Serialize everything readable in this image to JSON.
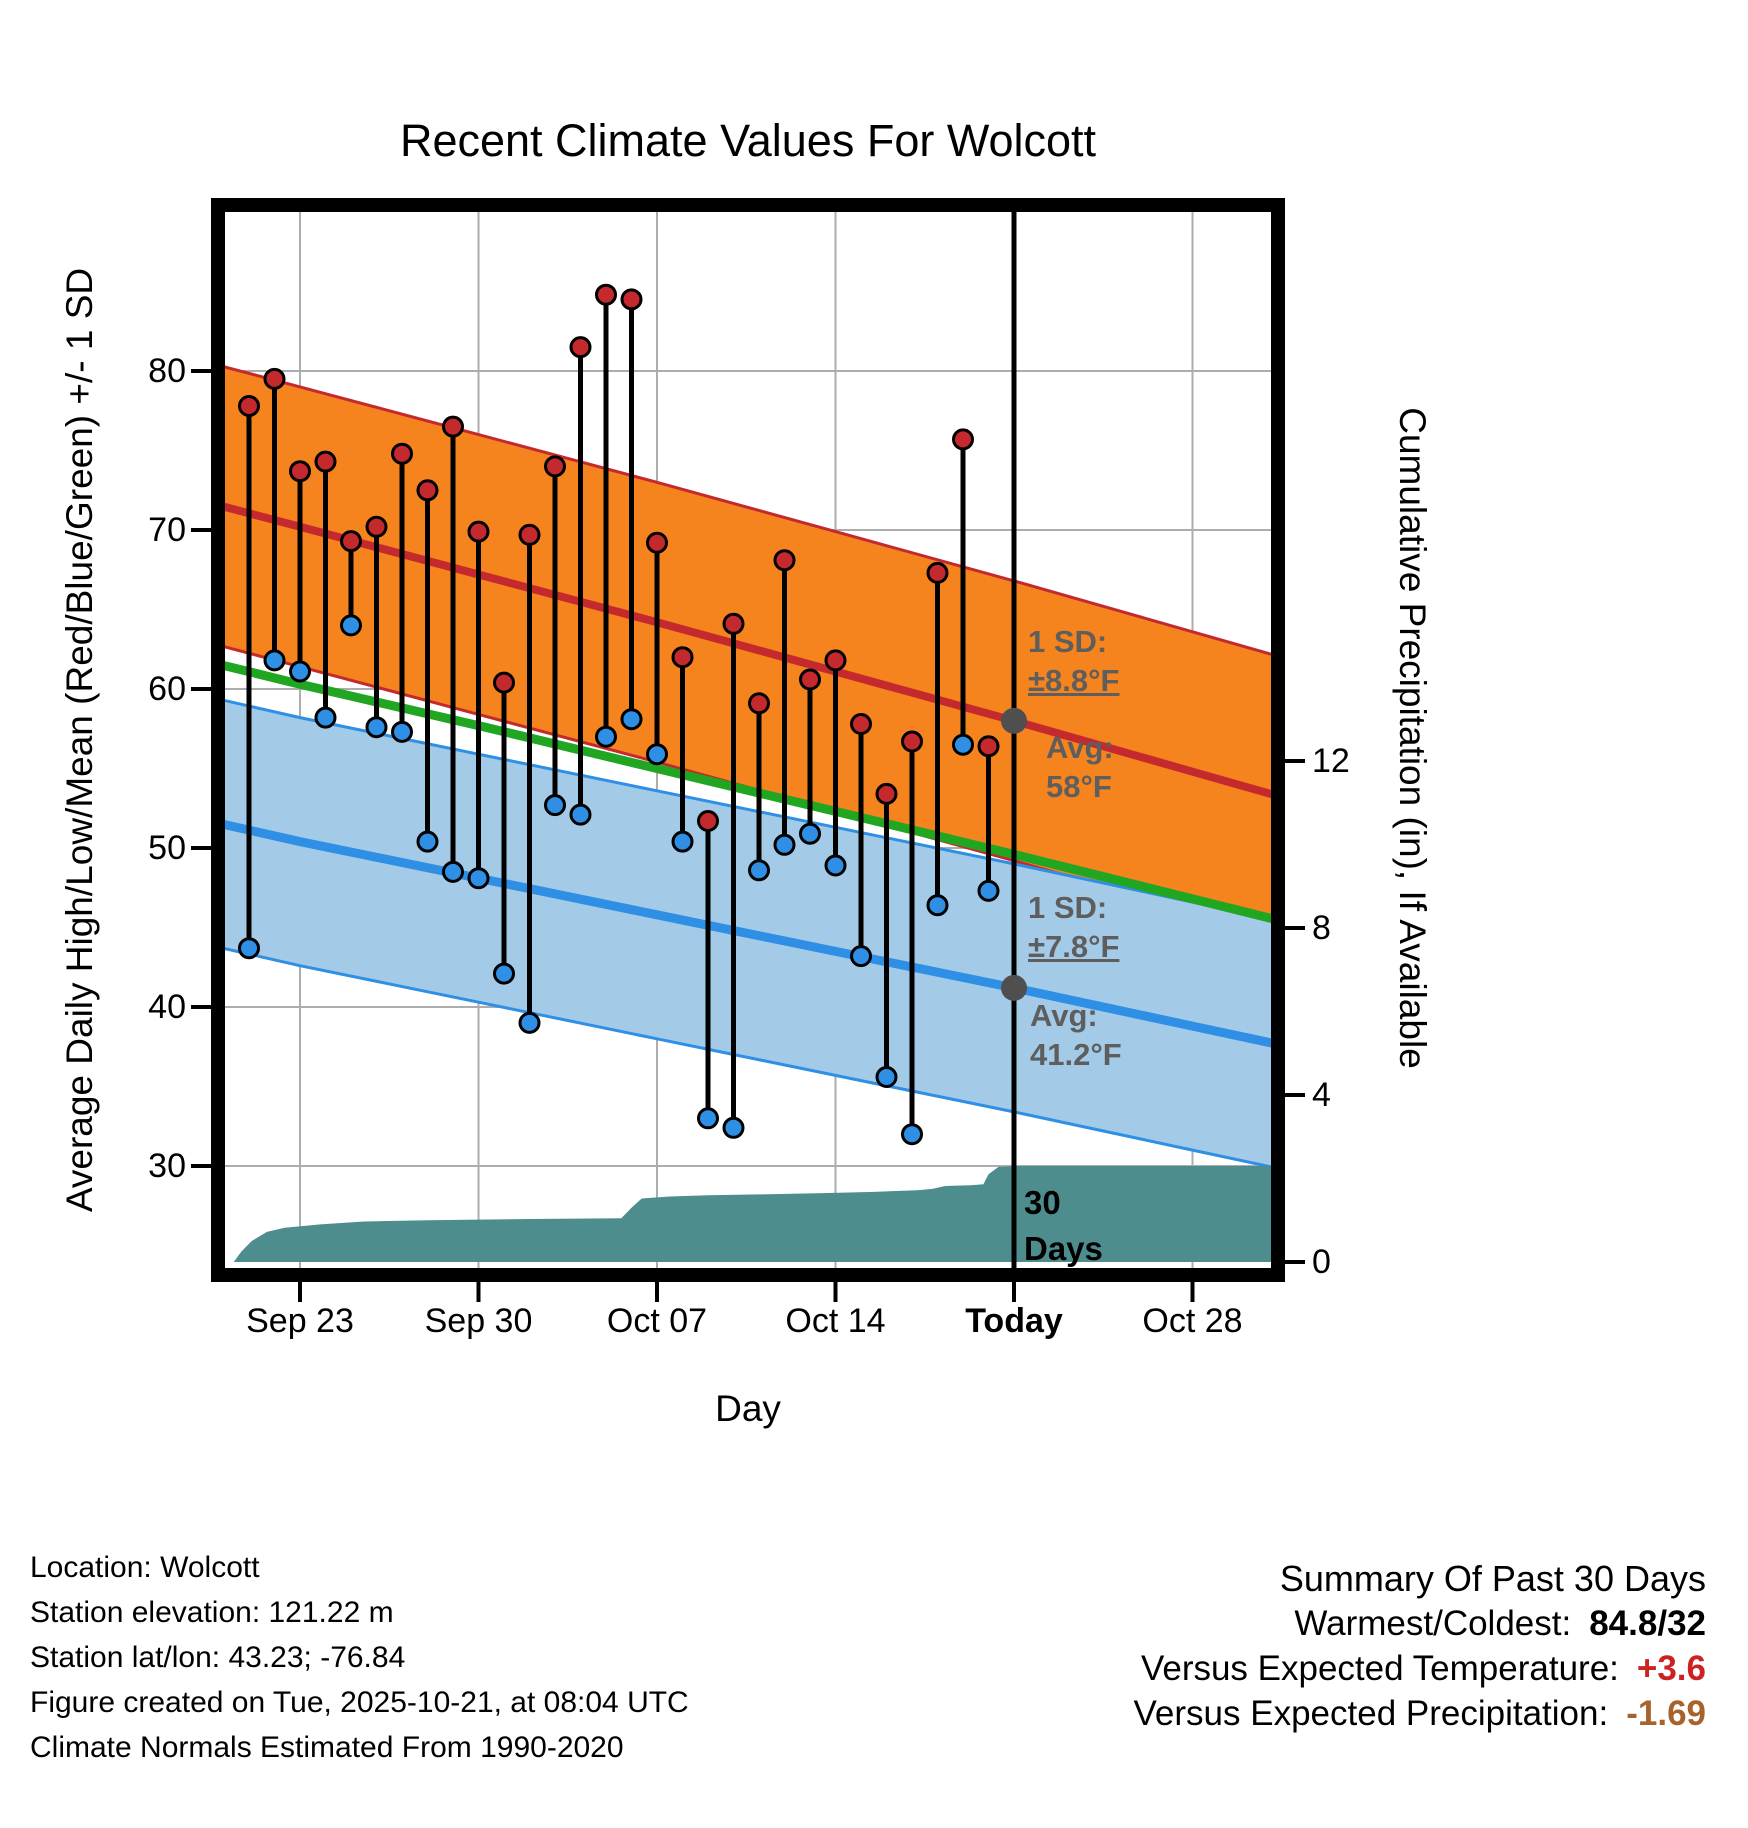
{
  "chart_data": {
    "type": "line",
    "title": "Recent Climate Values For Wolcott",
    "xlabel": "Day",
    "ylabel": "Average Daily High/Low/Mean (Red/Blue/Green) +/- 1 SD",
    "y2label": "Cumulative Precipitation (in), If Available",
    "grid": true,
    "legend": "none",
    "x_ticks": [
      {
        "day": 0,
        "label": "Sep 23",
        "bold": false
      },
      {
        "day": 7,
        "label": "Sep 30",
        "bold": false
      },
      {
        "day": 14,
        "label": "Oct 07",
        "bold": false
      },
      {
        "day": 21,
        "label": "Oct 14",
        "bold": false
      },
      {
        "day": 28,
        "label": "Today",
        "bold": true
      },
      {
        "day": 35,
        "label": "Oct 28",
        "bold": false
      }
    ],
    "y_ticks_temp": [
      80,
      70,
      60,
      50,
      40,
      30
    ],
    "y_ticks_precip": [
      12,
      8,
      4,
      0
    ],
    "ylim_temp": [
      23.1,
      90.4
    ],
    "y2lim_precip": [
      0,
      25.3
    ],
    "today_day": 28,
    "today_avg_high": 58.0,
    "today_avg_low": 41.2,
    "normals": {
      "high": {
        "sd": 8.8,
        "points": [
          [
            -3.3,
            71.6
          ],
          [
            0,
            70.2
          ],
          [
            7,
            67.2
          ],
          [
            14,
            64.2
          ],
          [
            21,
            61.1
          ],
          [
            28,
            58.0
          ],
          [
            35,
            54.8
          ],
          [
            38.5,
            53.2
          ]
        ]
      },
      "low": {
        "sd": 7.8,
        "points": [
          [
            -3.3,
            51.6
          ],
          [
            0,
            50.4
          ],
          [
            7,
            48.1
          ],
          [
            14,
            45.8
          ],
          [
            21,
            43.5
          ],
          [
            28,
            41.2
          ],
          [
            35,
            38.8
          ],
          [
            38.5,
            37.6
          ]
        ]
      },
      "mean": {
        "points": [
          [
            -3.3,
            61.6
          ],
          [
            0,
            60.3
          ],
          [
            7,
            57.7
          ],
          [
            14,
            55.0
          ],
          [
            21,
            52.3
          ],
          [
            28,
            49.6
          ],
          [
            35,
            46.8
          ],
          [
            38.5,
            45.4
          ]
        ]
      }
    },
    "daily": {
      "days": [
        -2,
        -1,
        0,
        1,
        2,
        3,
        4,
        5,
        6,
        7,
        8,
        9,
        10,
        11,
        12,
        13,
        14,
        15,
        16,
        17,
        18,
        19,
        20,
        21,
        22,
        23,
        24,
        25,
        26,
        27
      ],
      "high": [
        77.8,
        79.5,
        73.7,
        74.3,
        69.3,
        70.2,
        74.8,
        72.5,
        76.5,
        69.9,
        60.4,
        69.7,
        74.0,
        81.5,
        84.8,
        84.5,
        69.2,
        62.0,
        51.7,
        64.1,
        59.1,
        68.1,
        60.6,
        61.8,
        57.8,
        53.4,
        56.7,
        67.3,
        75.7,
        56.4
      ],
      "low": [
        43.7,
        61.8,
        61.1,
        58.2,
        64.0,
        57.6,
        57.3,
        50.4,
        48.5,
        48.1,
        42.1,
        39.0,
        52.7,
        52.1,
        57.0,
        58.1,
        55.9,
        50.4,
        33.0,
        32.4,
        48.6,
        50.2,
        50.9,
        48.9,
        43.2,
        35.6,
        32.0,
        46.4,
        56.5,
        47.3
      ]
    },
    "precip_cumulative": {
      "final_value": 2.3,
      "points": [
        [
          -2.6,
          0
        ],
        [
          -2.3,
          0.25
        ],
        [
          -1.9,
          0.5
        ],
        [
          -1.3,
          0.72
        ],
        [
          -0.6,
          0.82
        ],
        [
          0.8,
          0.9
        ],
        [
          2.5,
          0.97
        ],
        [
          5,
          1.0
        ],
        [
          9,
          1.03
        ],
        [
          12.6,
          1.05
        ],
        [
          13.0,
          1.3
        ],
        [
          13.4,
          1.52
        ],
        [
          14.5,
          1.57
        ],
        [
          16,
          1.6
        ],
        [
          18,
          1.62
        ],
        [
          20.5,
          1.65
        ],
        [
          22.5,
          1.68
        ],
        [
          24.2,
          1.72
        ],
        [
          24.8,
          1.75
        ],
        [
          25.3,
          1.82
        ],
        [
          26.3,
          1.84
        ],
        [
          26.8,
          1.86
        ],
        [
          27.0,
          2.1
        ],
        [
          27.4,
          2.28
        ],
        [
          28.2,
          2.3
        ],
        [
          38.5,
          2.3
        ]
      ]
    },
    "colors": {
      "high_band": "#F5831E",
      "high_line": "#C4292E",
      "high_dot": "#C4292E",
      "low_band": "#A3CBE8",
      "low_line": "#2E8FE4",
      "low_dot": "#2E8FE4",
      "mean_line": "#21A621",
      "precip_fill": "#4E8D8D",
      "stem": "#000000",
      "avg_dot": "#4F4F4F",
      "grid": "#ADADAD",
      "today_line": "#000000"
    }
  },
  "annotations": {
    "high_sd": {
      "label": "1 SD:",
      "value": "±8.8°F"
    },
    "high_avg": {
      "label": "Avg:",
      "value": "58°F"
    },
    "low_sd": {
      "label": "1 SD:",
      "value": "±7.8°F"
    },
    "low_avg": {
      "label": "Avg:",
      "value": "41.2°F"
    },
    "period": {
      "line1": "30",
      "line2": "Days"
    }
  },
  "footer_left": {
    "lines": [
      "Location: Wolcott",
      "Station elevation: 121.22 m",
      "Station lat/lon: 43.23; -76.84",
      "Figure created on Tue, 2025-10-21, at 08:04 UTC",
      "Climate Normals Estimated From 1990-2020"
    ]
  },
  "summary": {
    "title": "Summary Of Past 30 Days",
    "rows": [
      {
        "label": "Warmest/Coldest:",
        "value": "84.8/32",
        "color": "#000000"
      },
      {
        "label": "Versus Expected Temperature:",
        "value": "+3.6",
        "color": "#CC2222"
      },
      {
        "label": "Versus Expected Precipitation:",
        "value": "-1.69",
        "color": "#A8622B"
      }
    ]
  }
}
